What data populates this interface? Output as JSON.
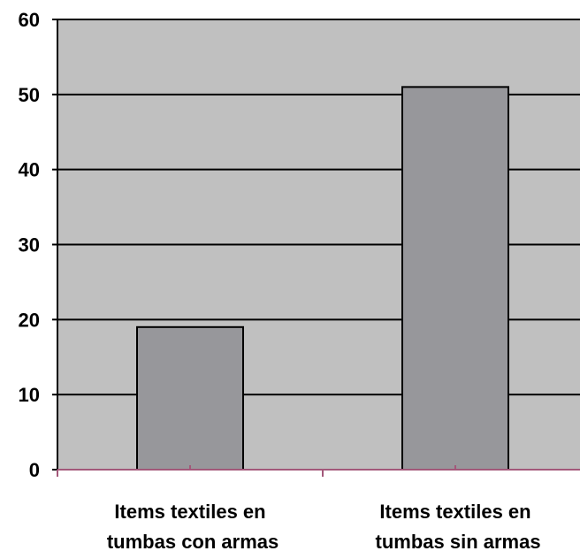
{
  "chart_data": {
    "type": "bar",
    "categories": [
      "Items textiles en tumbas con armas",
      "Items textiles en tumbas sin armas"
    ],
    "values": [
      19,
      51
    ],
    "color": "#97979b",
    "ylim": [
      0,
      60
    ],
    "yticks": [
      0,
      10,
      20,
      30,
      40,
      50,
      60
    ],
    "grid": true
  }
}
